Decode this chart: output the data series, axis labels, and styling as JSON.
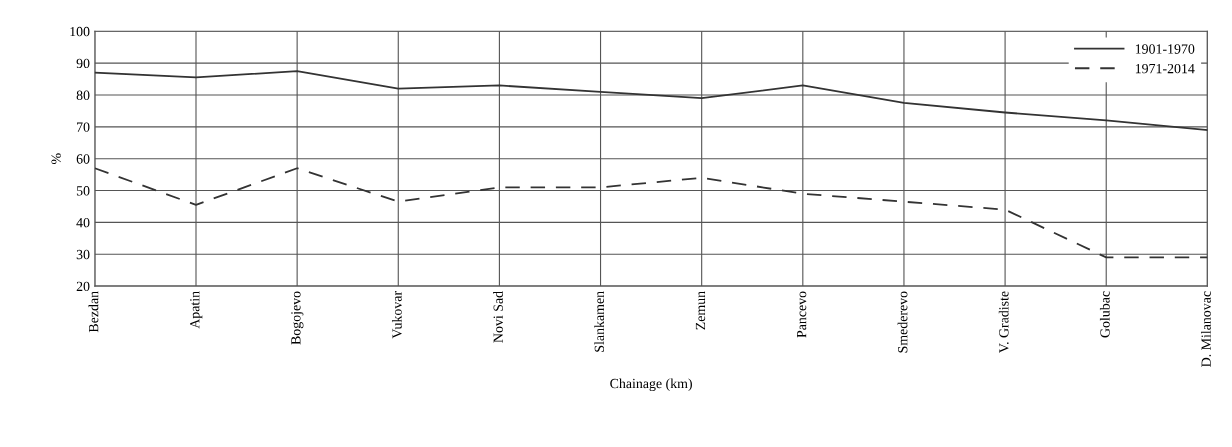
{
  "chart_data": {
    "type": "line",
    "xlabel": "Chainage (km)",
    "ylabel": "%",
    "categories": [
      "Bezdan",
      "Apatin",
      "Bogojevo",
      "Vukovar",
      "Novi Sad",
      "Slankamen",
      "Zemun",
      "Pancevo",
      "Smederevo",
      "V. Gradiste",
      "Golubac",
      "D. Milanovac"
    ],
    "ylim": [
      20,
      100
    ],
    "yticks": [
      20,
      30,
      40,
      50,
      60,
      70,
      80,
      90,
      100
    ],
    "grid": true,
    "legend": "top right",
    "marker": "none",
    "series": [
      {
        "name": "1901-1970",
        "color": "#333333",
        "line_style": "solid",
        "values": [
          87,
          85.5,
          87.5,
          82,
          83,
          81,
          79,
          83,
          77.5,
          74.5,
          72,
          69
        ]
      },
      {
        "name": "1971-2014",
        "color": "#333333",
        "line_style": "dashed",
        "values": [
          57,
          45.5,
          57,
          46.5,
          51,
          51,
          54,
          49,
          46.5,
          44,
          29,
          29
        ]
      }
    ]
  }
}
